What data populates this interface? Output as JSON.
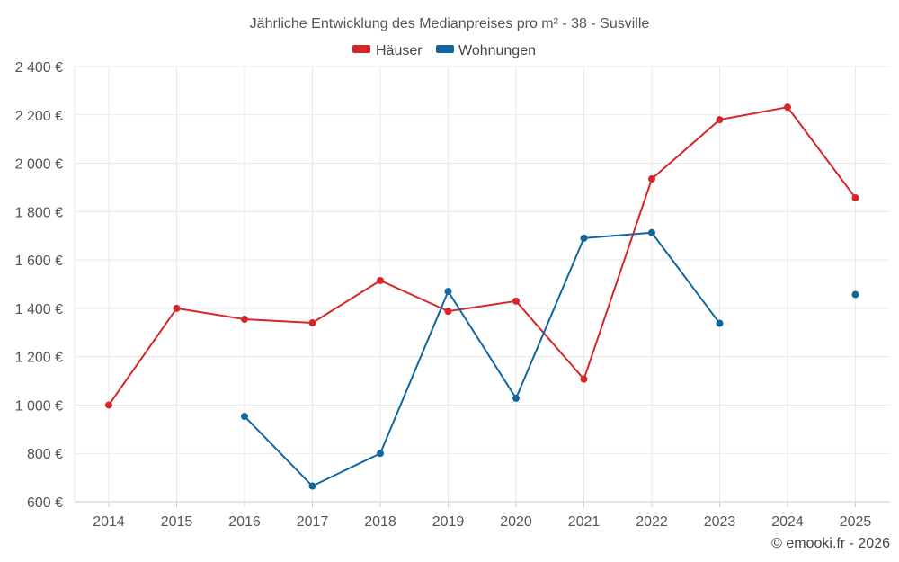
{
  "chart_data": {
    "type": "line",
    "title": "Jährliche Entwicklung des Medianpreises pro m² - 38 - Susville",
    "categories": [
      "2014",
      "2015",
      "2016",
      "2017",
      "2018",
      "2019",
      "2020",
      "2021",
      "2022",
      "2023",
      "2024",
      "2025"
    ],
    "y_ticks": [
      600,
      800,
      1000,
      1200,
      1400,
      1600,
      1800,
      2000,
      2200,
      2400
    ],
    "y_tick_labels": [
      "600 €",
      "800 €",
      "1 000 €",
      "1 200 €",
      "1 400 €",
      "1 600 €",
      "1 800 €",
      "2 000 €",
      "2 200 €",
      "2 400 €"
    ],
    "ylim": [
      600,
      2400
    ],
    "grid": true,
    "legend_position": "top",
    "series": [
      {
        "name": "Häuser",
        "color": "#d62728",
        "values": [
          1000,
          1400,
          1355,
          1340,
          1515,
          1388,
          1430,
          1107,
          1935,
          2180,
          2232,
          1857
        ]
      },
      {
        "name": "Wohnungen",
        "color": "#1066a0",
        "values": [
          null,
          null,
          953,
          665,
          800,
          1470,
          1028,
          1690,
          1713,
          1338,
          null,
          1457
        ]
      }
    ],
    "credit": "© emooki.fr - 2026"
  }
}
